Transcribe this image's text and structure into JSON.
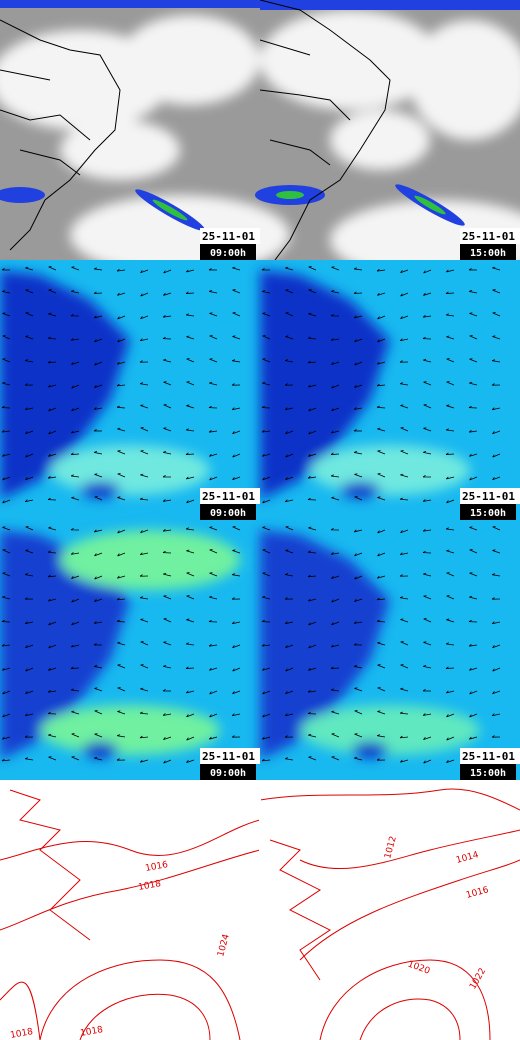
{
  "grid": {
    "rows": [
      [
        {
          "date": "25-11-01",
          "time": "09:00h"
        },
        {
          "date": "25-11-01",
          "time": "15:00h"
        }
      ],
      [
        {
          "date": "25-11-01",
          "time": "09:00h"
        },
        {
          "date": "25-11-01",
          "time": "15:00h"
        }
      ],
      [
        {
          "date": "25-11-01",
          "time": "09:00h"
        },
        {
          "date": "25-11-01",
          "time": "15:00h"
        }
      ]
    ]
  },
  "contour_maps": [
    {
      "labels": [
        "1016",
        "1018",
        "1024",
        "1018",
        "1018"
      ]
    },
    {
      "labels": [
        "1012",
        "1014",
        "1016",
        "1020",
        "1022"
      ]
    }
  ]
}
